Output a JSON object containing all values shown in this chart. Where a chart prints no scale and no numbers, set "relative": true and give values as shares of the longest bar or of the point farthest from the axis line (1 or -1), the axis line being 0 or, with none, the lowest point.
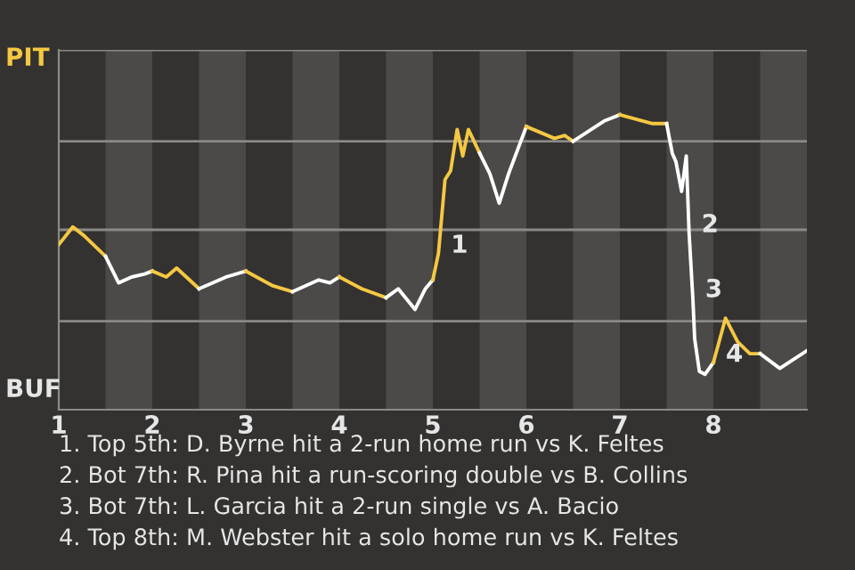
{
  "chart_data": {
    "type": "line",
    "relative": true,
    "xlim": [
      1,
      9
    ],
    "xticks": [
      1,
      2,
      3,
      4,
      5,
      6,
      7,
      8
    ],
    "legend": false,
    "marker": "none",
    "line_style": "solid",
    "series": [
      {
        "color": "#f5c842",
        "x": [
          1,
          1.15,
          1.27,
          1.5
        ],
        "values": [
          0.56,
          0.62,
          0.59,
          0.52
        ]
      },
      {
        "color": "#ffffff",
        "x": [
          1.5,
          1.64,
          1.78,
          1.92,
          2
        ],
        "values": [
          0.52,
          0.43,
          0.45,
          0.46,
          0.47
        ]
      },
      {
        "color": "#f5c842",
        "x": [
          2,
          2.15,
          2.26,
          2.5
        ],
        "values": [
          0.47,
          0.45,
          0.48,
          0.41
        ]
      },
      {
        "color": "#ffffff",
        "x": [
          2.5,
          2.79,
          3
        ],
        "values": [
          0.41,
          0.45,
          0.47
        ]
      },
      {
        "color": "#f5c842",
        "x": [
          3,
          3.29,
          3.5
        ],
        "values": [
          0.47,
          0.42,
          0.4
        ]
      },
      {
        "color": "#ffffff",
        "x": [
          3.5,
          3.78,
          3.9,
          4
        ],
        "values": [
          0.4,
          0.44,
          0.43,
          0.45
        ]
      },
      {
        "color": "#f5c842",
        "x": [
          4,
          4.24,
          4.5
        ],
        "values": [
          0.45,
          0.41,
          0.38
        ]
      },
      {
        "color": "#ffffff",
        "x": [
          4.5,
          4.63,
          4.81,
          4.92,
          5
        ],
        "values": [
          0.38,
          0.41,
          0.34,
          0.41,
          0.44
        ]
      },
      {
        "color": "#f5c842",
        "x": [
          5,
          5.06,
          5.13,
          5.19,
          5.26,
          5.32,
          5.38,
          5.5
        ],
        "values": [
          0.44,
          0.53,
          0.78,
          0.81,
          0.95,
          0.86,
          0.95,
          0.87
        ]
      },
      {
        "color": "#ffffff",
        "x": [
          5.5,
          5.61,
          5.71,
          5.81,
          6
        ],
        "values": [
          0.87,
          0.8,
          0.7,
          0.8,
          0.96
        ]
      },
      {
        "color": "#f5c842",
        "x": [
          6,
          6.3,
          6.41,
          6.5
        ],
        "values": [
          0.96,
          0.92,
          0.93,
          0.91
        ]
      },
      {
        "color": "#ffffff",
        "x": [
          6.5,
          6.84,
          7
        ],
        "values": [
          0.91,
          0.98,
          1
        ]
      },
      {
        "color": "#f5c842",
        "x": [
          7,
          7.35,
          7.5
        ],
        "values": [
          1,
          0.97,
          0.97
        ]
      },
      {
        "color": "#ffffff",
        "x": [
          7.5,
          7.56,
          7.6,
          7.66,
          7.71,
          7.74,
          7.78,
          7.8,
          7.85,
          7.91,
          8
        ],
        "values": [
          0.97,
          0.87,
          0.84,
          0.74,
          0.86,
          0.6,
          0.38,
          0.24,
          0.13,
          0.12,
          0.16
        ]
      },
      {
        "color": "#f5c842",
        "x": [
          8,
          8.13,
          8.26,
          8.39,
          8.5
        ],
        "values": [
          0.16,
          0.31,
          0.23,
          0.19,
          0.19
        ]
      },
      {
        "color": "#ffffff",
        "x": [
          8.5,
          8.71,
          9
        ],
        "values": [
          0.19,
          0.14,
          0.2
        ]
      }
    ],
    "ref_lines": [
      {
        "axis": "y",
        "value": 0.3,
        "color": "#8a8987"
      },
      {
        "axis": "y",
        "value": 0.61,
        "color": "#8a8987"
      },
      {
        "axis": "y",
        "value": 0.91,
        "color": "#8a8987"
      },
      {
        "axis": "y",
        "value": 1.22,
        "color": "#8a8987"
      }
    ],
    "bands": [
      {
        "axis": "x",
        "from": 1.5,
        "to": 2,
        "color": "#4b4a48"
      },
      {
        "axis": "x",
        "from": 2.5,
        "to": 3,
        "color": "#4b4a48"
      },
      {
        "axis": "x",
        "from": 3.5,
        "to": 4,
        "color": "#4b4a48"
      },
      {
        "axis": "x",
        "from": 4.5,
        "to": 5,
        "color": "#4b4a48"
      },
      {
        "axis": "x",
        "from": 5.5,
        "to": 6,
        "color": "#4b4a48"
      },
      {
        "axis": "x",
        "from": 6.5,
        "to": 7,
        "color": "#4b4a48"
      },
      {
        "axis": "x",
        "from": 7.5,
        "to": 8,
        "color": "#4b4a48"
      },
      {
        "axis": "x",
        "from": 8.5,
        "to": 9,
        "color": "#4b4a48"
      }
    ],
    "annotations": [
      "PIT",
      "BUF",
      {
        "text": "1",
        "x": 5.06,
        "y": 0.53
      },
      {
        "text": "2",
        "x": 7.74,
        "y": 0.6
      },
      {
        "text": "3",
        "x": 7.78,
        "y": 0.38
      },
      {
        "text": "4",
        "x": 8,
        "y": 0.16
      },
      "1. Top 5th: D. Byrne hit a 2-run home run vs K. Feltes",
      "2. Bot 7th: R. Pina hit a run-scoring double vs B. Collins",
      "3. Bot 7th: L. Garcia hit a 2-run single vs A. Bacio",
      "4. Top 8th: M. Webster hit a solo home run vs K. Feltes"
    ]
  }
}
